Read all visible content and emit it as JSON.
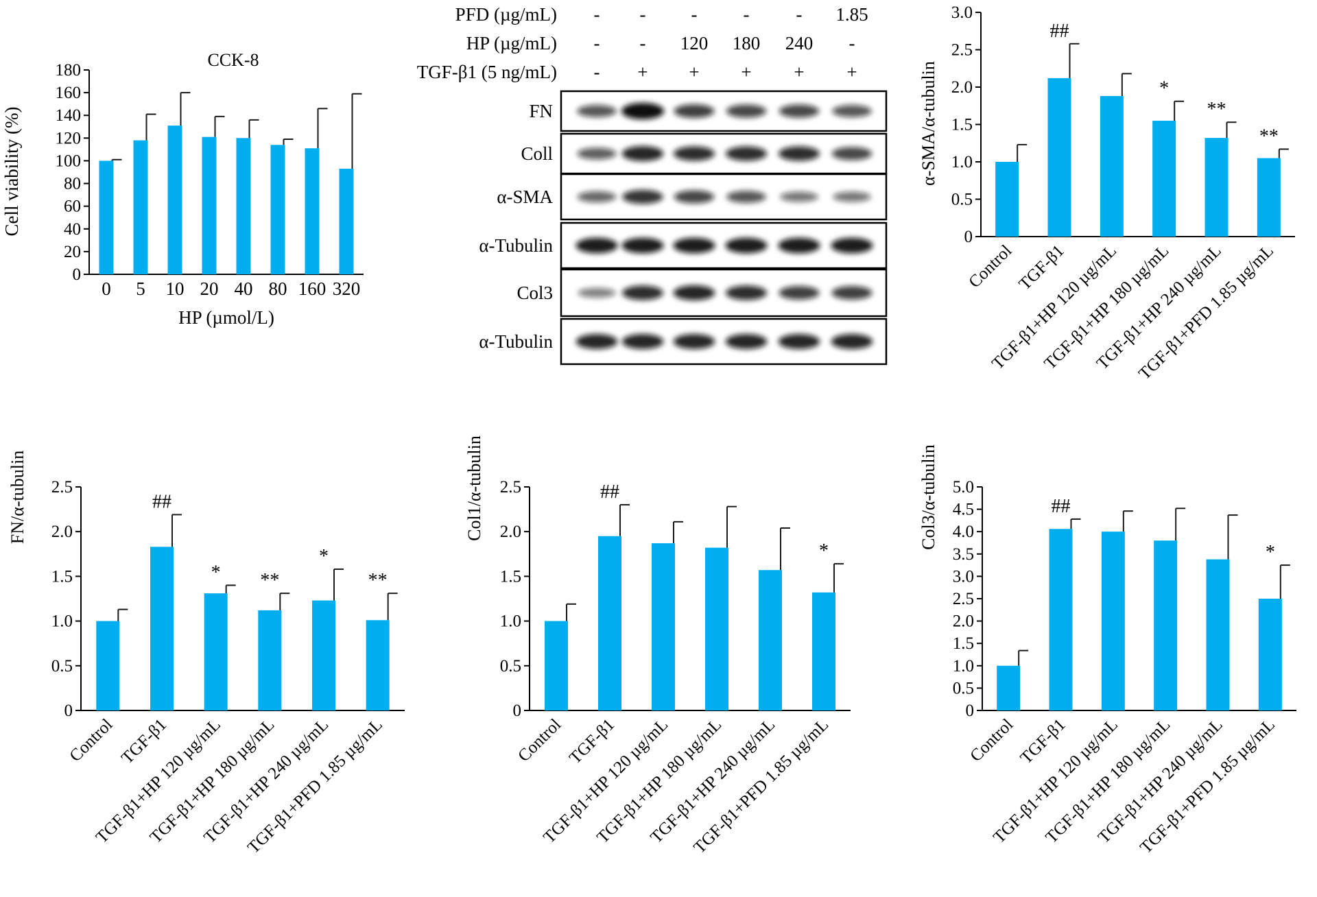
{
  "colors": {
    "bar": "#00aeef",
    "axis": "#000000",
    "band": "#111111"
  },
  "cck8": {
    "title": "CCK-8",
    "xlabel": "HP (µmol/L)",
    "ylabel": "Cell viability (%)",
    "categories": [
      "0",
      "5",
      "10",
      "20",
      "40",
      "80",
      "160",
      "320"
    ],
    "values": [
      100,
      118,
      131,
      121,
      120,
      114,
      111,
      93
    ],
    "errors": [
      1,
      23,
      29,
      18,
      16,
      5,
      35,
      66
    ],
    "annotations": [
      "",
      "",
      "",
      "",
      "",
      "",
      "",
      ""
    ],
    "yticks": [
      "0",
      "20",
      "40",
      "60",
      "80",
      "100",
      "120",
      "140",
      "160",
      "180"
    ],
    "ylim": [
      0,
      180
    ]
  },
  "western": {
    "row_labels": [
      "PFD (µg/mL)",
      "HP (µg/mL)",
      "TGF-β1 (5 ng/mL)"
    ],
    "lanes": [
      [
        "-",
        "-",
        "-",
        "-",
        "-",
        "1.85"
      ],
      [
        "-",
        "-",
        "120",
        "180",
        "240",
        "-"
      ],
      [
        "-",
        "+",
        "+",
        "+",
        "+",
        "+"
      ]
    ],
    "blots": [
      {
        "label": "FN",
        "intensity": [
          0.55,
          1.0,
          0.7,
          0.65,
          0.65,
          0.55
        ]
      },
      {
        "label": "Coll",
        "intensity": [
          0.5,
          0.85,
          0.8,
          0.8,
          0.8,
          0.65
        ]
      },
      {
        "label": "α-SMA",
        "intensity": [
          0.45,
          0.75,
          0.65,
          0.55,
          0.35,
          0.35
        ]
      },
      {
        "label": "α-Tubulin",
        "intensity": [
          0.9,
          0.9,
          0.9,
          0.9,
          0.9,
          0.9
        ]
      },
      {
        "label": "Col3",
        "intensity": [
          0.3,
          0.8,
          0.85,
          0.8,
          0.7,
          0.7
        ]
      },
      {
        "label": "α-Tubulin",
        "intensity": [
          0.85,
          0.85,
          0.85,
          0.85,
          0.85,
          0.85
        ]
      }
    ]
  },
  "chart_data": [
    {
      "type": "bar",
      "title": "CCK-8",
      "xlabel": "HP (µmol/L)",
      "ylabel": "Cell viability (%)",
      "categories": [
        "0",
        "5",
        "10",
        "20",
        "40",
        "80",
        "160",
        "320"
      ],
      "values": [
        100,
        118,
        131,
        121,
        120,
        114,
        111,
        93
      ],
      "errors": [
        1,
        23,
        29,
        18,
        16,
        5,
        35,
        66
      ],
      "ylim": [
        0,
        180
      ]
    },
    {
      "type": "bar",
      "ylabel": "α-SMA/α-tubulin",
      "categories": [
        "Control",
        "TGF-β1",
        "TGF-β1+HP 120 µg/mL",
        "TGF-β1+HP 180 µg/mL",
        "TGF-β1+HP 240 µg/mL",
        "TGF-β1+PFD 1.85 µg/mL"
      ],
      "values": [
        1.0,
        2.12,
        1.88,
        1.55,
        1.32,
        1.05
      ],
      "errors": [
        0.23,
        0.46,
        0.3,
        0.26,
        0.21,
        0.12
      ],
      "annotations": [
        "",
        "##",
        "",
        "*",
        "**",
        "**"
      ],
      "ylim": [
        0,
        3.0
      ]
    },
    {
      "type": "bar",
      "ylabel": "FN/α-tubulin",
      "categories": [
        "Control",
        "TGF-β1",
        "TGF-β1+HP 120 µg/mL",
        "TGF-β1+HP 180 µg/mL",
        "TGF-β1+HP 240 µg/mL",
        "TGF-β1+PFD 1.85 µg/mL"
      ],
      "values": [
        1.0,
        1.83,
        1.31,
        1.12,
        1.23,
        1.01
      ],
      "errors": [
        0.13,
        0.36,
        0.09,
        0.19,
        0.35,
        0.3
      ],
      "annotations": [
        "",
        "##",
        "*",
        "**",
        "*",
        "**"
      ],
      "ylim": [
        0,
        2.5
      ]
    },
    {
      "type": "bar",
      "ylabel": "Col1/α-tubulin",
      "categories": [
        "Control",
        "TGF-β1",
        "TGF-β1+HP 120 µg/mL",
        "TGF-β1+HP 180 µg/mL",
        "TGF-β1+HP 240 µg/mL",
        "TGF-β1+PFD 1.85 µg/mL"
      ],
      "values": [
        1.0,
        1.95,
        1.87,
        1.82,
        1.57,
        1.32
      ],
      "errors": [
        0.19,
        0.35,
        0.24,
        0.46,
        0.47,
        0.32
      ],
      "annotations": [
        "",
        "##",
        "",
        "",
        "",
        "*"
      ],
      "ylim": [
        0,
        2.5
      ]
    },
    {
      "type": "bar",
      "ylabel": "Col3/α-tubulin",
      "categories": [
        "Control",
        "TGF-β1",
        "TGF-β1+HP 120 µg/mL",
        "TGF-β1+HP 180 µg/mL",
        "TGF-β1+HP 240 µg/mL",
        "TGF-β1+PFD 1.85 µg/mL"
      ],
      "values": [
        1.0,
        4.06,
        4.0,
        3.8,
        3.38,
        2.5
      ],
      "errors": [
        0.34,
        0.22,
        0.46,
        0.72,
        0.99,
        0.75
      ],
      "annotations": [
        "",
        "##",
        "",
        "",
        "",
        "*"
      ],
      "ylim": [
        0,
        5.0
      ]
    }
  ],
  "panels": [
    {
      "id": "sma",
      "ylabel": "α-SMA/α-tubulin",
      "categories": [
        "Control",
        "TGF-β1",
        "TGF-β1+HP 120 µg/mL",
        "TGF-β1+HP 180 µg/mL",
        "TGF-β1+HP 240 µg/mL",
        "TGF-β1+PFD 1.85 µg/mL"
      ],
      "values": [
        1.0,
        2.12,
        1.88,
        1.55,
        1.32,
        1.05
      ],
      "errors": [
        0.23,
        0.46,
        0.3,
        0.26,
        0.21,
        0.12
      ],
      "annotations": [
        "",
        "##",
        "",
        "*",
        "**",
        "**"
      ],
      "yticks": [
        "0",
        "0.5",
        "1.0",
        "1.5",
        "2.0",
        "2.5",
        "3.0"
      ],
      "ylim": [
        0,
        3.0
      ]
    },
    {
      "id": "fn",
      "ylabel": "FN/α-tubulin",
      "categories": [
        "Control",
        "TGF-β1",
        "TGF-β1+HP 120 µg/mL",
        "TGF-β1+HP 180 µg/mL",
        "TGF-β1+HP 240 µg/mL",
        "TGF-β1+PFD 1.85 µg/mL"
      ],
      "values": [
        1.0,
        1.83,
        1.31,
        1.12,
        1.23,
        1.01
      ],
      "errors": [
        0.13,
        0.36,
        0.09,
        0.19,
        0.35,
        0.3
      ],
      "annotations": [
        "",
        "##",
        "*",
        "**",
        "*",
        "**"
      ],
      "yticks": [
        "0",
        "0.5",
        "1.0",
        "1.5",
        "2.0",
        "2.5"
      ],
      "ylim": [
        0,
        2.5
      ]
    },
    {
      "id": "col1",
      "ylabel": "Col1/α-tubulin",
      "categories": [
        "Control",
        "TGF-β1",
        "TGF-β1+HP 120 µg/mL",
        "TGF-β1+HP 180 µg/mL",
        "TGF-β1+HP 240 µg/mL",
        "TGF-β1+PFD 1.85 µg/mL"
      ],
      "values": [
        1.0,
        1.95,
        1.87,
        1.82,
        1.57,
        1.32
      ],
      "errors": [
        0.19,
        0.35,
        0.24,
        0.46,
        0.47,
        0.32
      ],
      "annotations": [
        "",
        "##",
        "",
        "",
        "",
        "*"
      ],
      "yticks": [
        "0",
        "0.5",
        "1.0",
        "1.5",
        "2.0",
        "2.5"
      ],
      "ylim": [
        0,
        2.5
      ]
    },
    {
      "id": "col3",
      "ylabel": "Col3/α-tubulin",
      "categories": [
        "Control",
        "TGF-β1",
        "TGF-β1+HP 120 µg/mL",
        "TGF-β1+HP 180 µg/mL",
        "TGF-β1+HP 240 µg/mL",
        "TGF-β1+PFD 1.85 µg/mL"
      ],
      "values": [
        1.0,
        4.06,
        4.0,
        3.8,
        3.38,
        2.5
      ],
      "errors": [
        0.34,
        0.22,
        0.46,
        0.72,
        0.99,
        0.75
      ],
      "annotations": [
        "",
        "##",
        "",
        "",
        "",
        "*"
      ],
      "yticks": [
        "0",
        "0.5",
        "1.0",
        "1.5",
        "2.0",
        "2.5",
        "3.0",
        "3.5",
        "4.0",
        "4.5",
        "5.0"
      ],
      "ylim": [
        0,
        5.0
      ]
    }
  ]
}
